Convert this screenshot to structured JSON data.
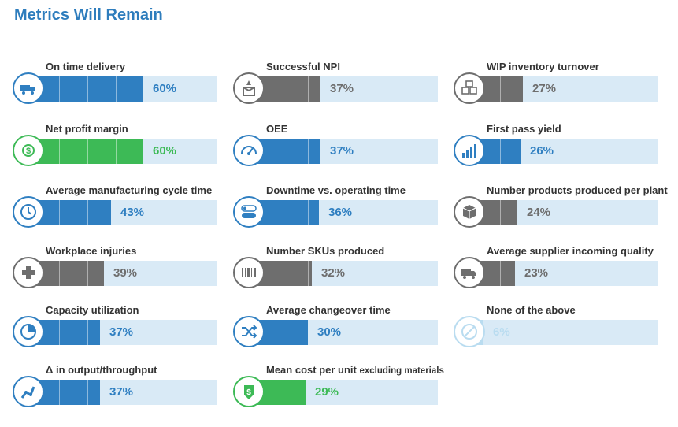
{
  "title": "Metrics Will Remain",
  "colors": {
    "blue": "#2f7fc1",
    "gray": "#6e6e6e",
    "green": "#3dba56",
    "light": "#b9dcf0",
    "track": "#d9eaf6"
  },
  "chart_data": {
    "type": "bar",
    "unit": "%",
    "xlim": [
      0,
      100
    ],
    "items": [
      {
        "label": "On time delivery",
        "value": 60,
        "value_label": "60%",
        "color": "blue",
        "icon": "truck-icon"
      },
      {
        "label": "Net profit margin",
        "value": 60,
        "value_label": "60%",
        "color": "green",
        "icon": "dollar-cycle-icon"
      },
      {
        "label": "Average manufacturing cycle time",
        "value": 43,
        "value_label": "43%",
        "color": "blue",
        "icon": "clock-icon"
      },
      {
        "label": "Workplace injuries",
        "value": 39,
        "value_label": "39%",
        "color": "gray",
        "icon": "medical-cross-icon"
      },
      {
        "label": "Capacity utilization",
        "value": 37,
        "value_label": "37%",
        "color": "blue",
        "icon": "pie-chart-icon"
      },
      {
        "label": "Δ in output/throughput",
        "value": 37,
        "value_label": "37%",
        "color": "blue",
        "icon": "robot-arm-icon"
      },
      {
        "label": "Successful NPI",
        "value": 37,
        "value_label": "37%",
        "color": "gray",
        "icon": "rocket-box-icon"
      },
      {
        "label": "OEE",
        "value": 37,
        "value_label": "37%",
        "color": "blue",
        "icon": "gauge-icon"
      },
      {
        "label": "Downtime vs. operating time",
        "value": 36,
        "value_label": "36%",
        "color": "blue",
        "icon": "on-off-switch-icon"
      },
      {
        "label": "Number SKUs produced",
        "value": 32,
        "value_label": "32%",
        "color": "gray",
        "icon": "barcode-icon"
      },
      {
        "label": "Average changeover time",
        "value": 30,
        "value_label": "30%",
        "color": "blue",
        "icon": "shuffle-icon"
      },
      {
        "label": "Mean cost per unit",
        "label_small": "excluding materials",
        "value": 29,
        "value_label": "29%",
        "color": "green",
        "icon": "price-tag-icon"
      },
      {
        "label": "WIP inventory turnover",
        "value": 27,
        "value_label": "27%",
        "color": "gray",
        "icon": "stacked-boxes-icon"
      },
      {
        "label": "First pass yield",
        "value": 26,
        "value_label": "26%",
        "color": "blue",
        "icon": "bar-chart-icon"
      },
      {
        "label": "Number products produced per plant",
        "value": 24,
        "value_label": "24%",
        "color": "gray",
        "icon": "cube-icon"
      },
      {
        "label": "Average supplier incoming quality",
        "value": 23,
        "value_label": "23%",
        "color": "gray",
        "icon": "delivery-truck-icon"
      },
      {
        "label": "None of the above",
        "value": 6,
        "value_label": "6%",
        "color": "light",
        "icon": "no-symbol-icon"
      }
    ]
  }
}
